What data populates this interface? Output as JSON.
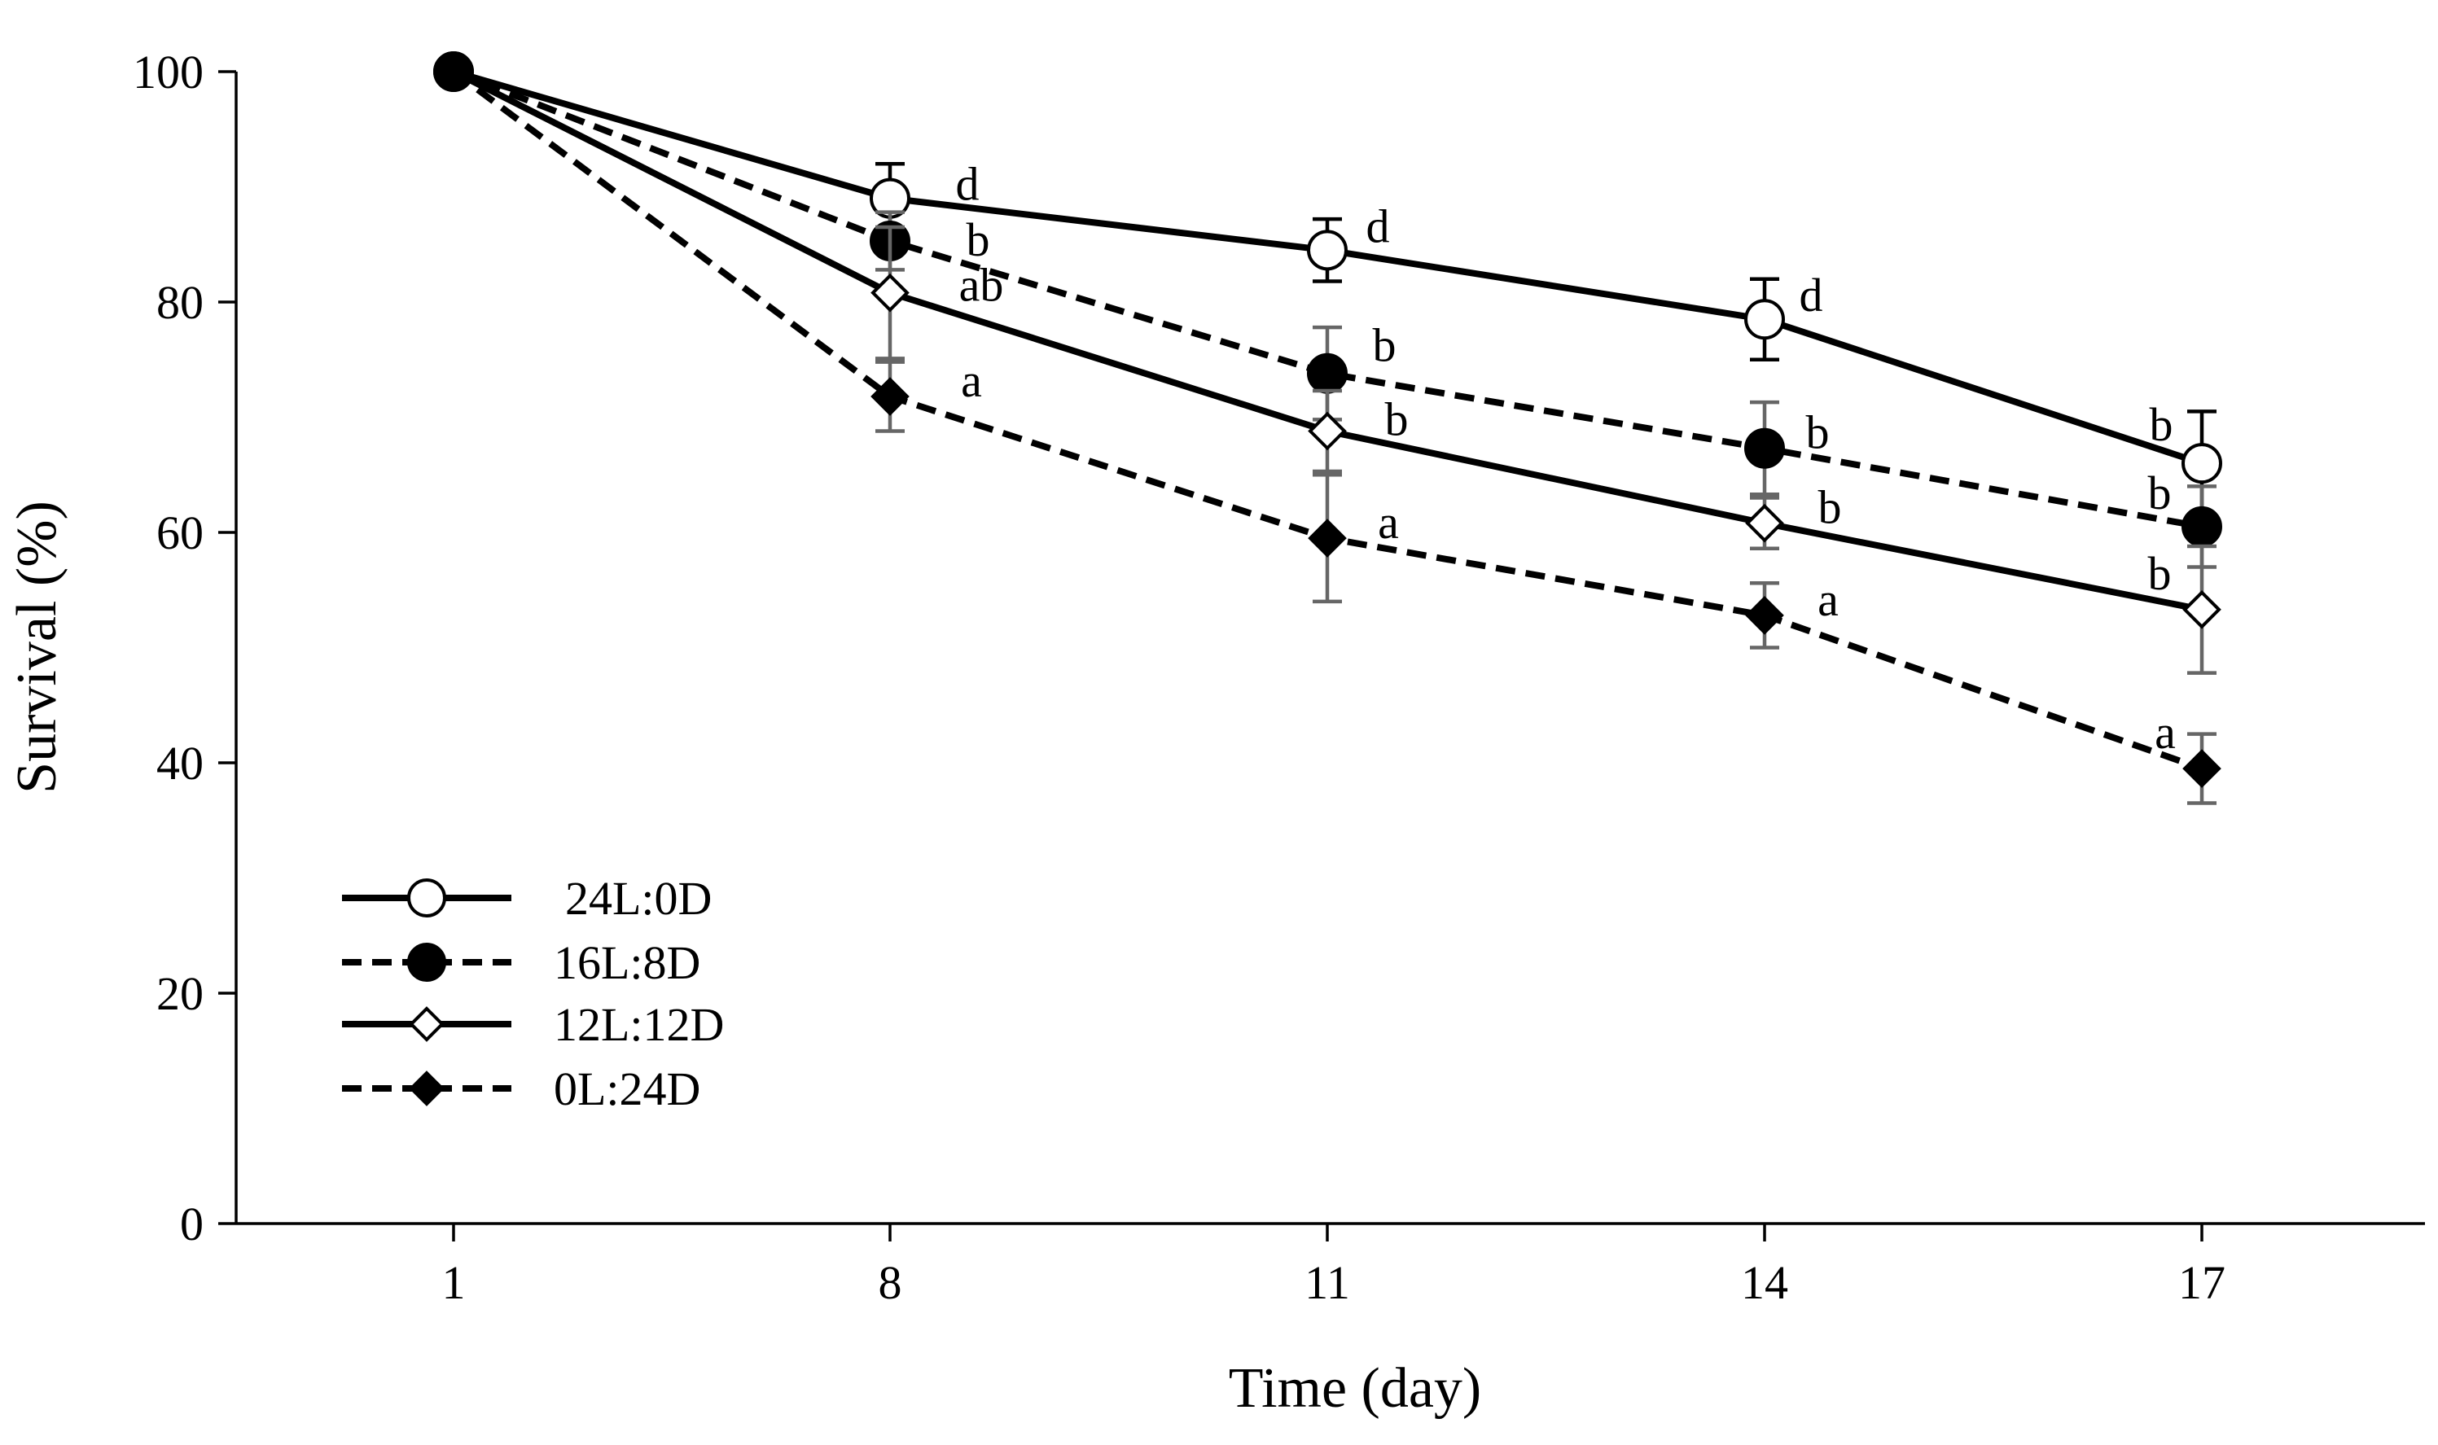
{
  "chart_data": {
    "type": "line",
    "title": "",
    "xlabel": "Time (day)",
    "ylabel": "Survival (%)",
    "categories": [
      "1",
      "8",
      "11",
      "14",
      "17"
    ],
    "ylim": [
      0,
      100
    ],
    "yticks": [
      "0",
      "20",
      "40",
      "60",
      "80",
      "100"
    ],
    "grid": false,
    "legend_position": "bottom-left",
    "series": [
      {
        "name": "24L:0D",
        "line_style": "solid",
        "marker": "circle-open",
        "values": [
          100,
          89,
          84.5,
          78.5,
          66
        ],
        "errors": [
          0,
          3,
          2.7,
          3.5,
          4.5
        ],
        "error_color": "#000000",
        "letters": [
          "",
          "d",
          "d",
          "d",
          "b"
        ]
      },
      {
        "name": "16L:8D",
        "line_style": "dashed",
        "marker": "circle-filled",
        "values": [
          100,
          85.3,
          73.8,
          67.3,
          60.5
        ],
        "errors": [
          0,
          2.5,
          4,
          4,
          3.5
        ],
        "error_color": "#666666",
        "letters": [
          "",
          "b",
          "b",
          "b",
          "b"
        ]
      },
      {
        "name": "12L:12D",
        "line_style": "solid",
        "marker": "diamond-open",
        "values": [
          100,
          80.8,
          68.8,
          60.8,
          53.3
        ],
        "errors": [
          0,
          5.7,
          3.5,
          2.2,
          5.5
        ],
        "error_color": "#666666",
        "letters": [
          "",
          "ab",
          "b",
          "b",
          "b"
        ]
      },
      {
        "name": "0L:24D",
        "line_style": "dashed",
        "marker": "diamond-filled",
        "values": [
          100,
          71.8,
          59.5,
          52.8,
          39.5
        ],
        "errors": [
          0,
          3,
          5.5,
          2.8,
          3
        ],
        "error_color": "#666666",
        "letters": [
          "",
          "a",
          "a",
          "a",
          "a"
        ]
      }
    ]
  }
}
